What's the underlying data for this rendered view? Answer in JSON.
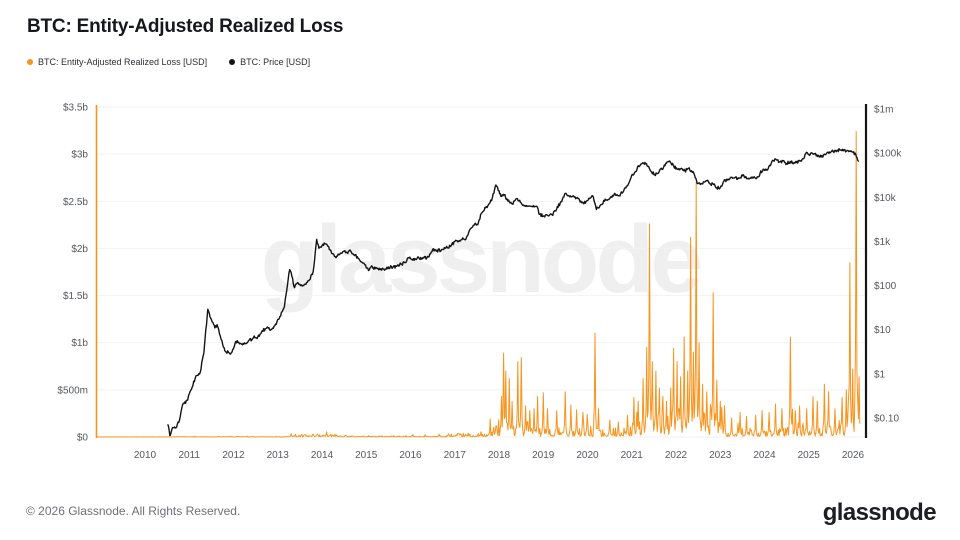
{
  "header": {
    "title": "BTC: Entity-Adjusted Realized Loss"
  },
  "legend": [
    {
      "label": "BTC: Entity-Adjusted Realized Loss [USD]",
      "color": "#F7941D"
    },
    {
      "label": "BTC: Price [USD]",
      "color": "#141414"
    }
  ],
  "watermark": "glassnode",
  "footer": {
    "copyright": "© 2026 Glassnode. All Rights Reserved.",
    "logo": "glassnode"
  },
  "chart_data": {
    "type": "line",
    "title": "BTC: Entity-Adjusted Realized Loss",
    "legend_position": "top-left",
    "grid": "horizontal gridlines at left-axis ticks",
    "x_axis": {
      "ticks": [
        "2010",
        "2011",
        "2012",
        "2013",
        "2014",
        "2015",
        "2016",
        "2017",
        "2018",
        "2019",
        "2020",
        "2021",
        "2022",
        "2023",
        "2024",
        "2025",
        "2026"
      ],
      "first_tick_year": 2010,
      "range_years": [
        2008.9,
        2026.3
      ]
    },
    "y_left": {
      "series": "BTC: Entity-Adjusted Realized Loss [USD]",
      "scale": "linear",
      "axis_color": "#F7941D",
      "ticks": [
        {
          "label": "$3.5b",
          "value_musd": 3500
        },
        {
          "label": "$3b",
          "value_musd": 3000
        },
        {
          "label": "$2.5b",
          "value_musd": 2500
        },
        {
          "label": "$2b",
          "value_musd": 2000
        },
        {
          "label": "$1.5b",
          "value_musd": 1500
        },
        {
          "label": "$1b",
          "value_musd": 1000
        },
        {
          "label": "$500m",
          "value_musd": 500
        },
        {
          "label": "$0",
          "value_musd": 0
        }
      ],
      "range_musd": [
        0,
        3500
      ]
    },
    "y_right": {
      "series": "BTC: Price [USD]",
      "scale": "log10",
      "axis_color": "#141414",
      "ticks": [
        {
          "label": "$1m",
          "value_usd": 1000000
        },
        {
          "label": "$100k",
          "value_usd": 100000
        },
        {
          "label": "$10k",
          "value_usd": 10000
        },
        {
          "label": "$1k",
          "value_usd": 1000
        },
        {
          "label": "$100",
          "value_usd": 100
        },
        {
          "label": "$10",
          "value_usd": 10
        },
        {
          "label": "$1",
          "value_usd": 1
        },
        {
          "label": "$0.10",
          "value_usd": 0.1
        }
      ]
    },
    "price_series": {
      "name": "BTC: Price [USD]",
      "color": "#141414",
      "points_year_usd": [
        [
          2010.52,
          0.07
        ],
        [
          2010.56,
          0.04
        ],
        [
          2010.62,
          0.06
        ],
        [
          2010.7,
          0.06
        ],
        [
          2010.78,
          0.09
        ],
        [
          2010.85,
          0.2
        ],
        [
          2010.95,
          0.25
        ],
        [
          2011.05,
          0.45
        ],
        [
          2011.15,
          0.9
        ],
        [
          2011.25,
          1.1
        ],
        [
          2011.33,
          3.0
        ],
        [
          2011.42,
          29
        ],
        [
          2011.5,
          17
        ],
        [
          2011.58,
          11
        ],
        [
          2011.63,
          13
        ],
        [
          2011.72,
          6.0
        ],
        [
          2011.82,
          3.2
        ],
        [
          2011.95,
          3.0
        ],
        [
          2012.05,
          5.4
        ],
        [
          2012.15,
          4.9
        ],
        [
          2012.3,
          5.0
        ],
        [
          2012.45,
          6.6
        ],
        [
          2012.55,
          6.9
        ],
        [
          2012.65,
          9.5
        ],
        [
          2012.75,
          11
        ],
        [
          2012.85,
          10.2
        ],
        [
          2012.95,
          13.4
        ],
        [
          2013.05,
          20
        ],
        [
          2013.15,
          33
        ],
        [
          2013.27,
          230
        ],
        [
          2013.32,
          160
        ],
        [
          2013.38,
          90
        ],
        [
          2013.45,
          117
        ],
        [
          2013.52,
          100
        ],
        [
          2013.62,
          108
        ],
        [
          2013.72,
          135
        ],
        [
          2013.8,
          205
        ],
        [
          2013.88,
          1120
        ],
        [
          2013.93,
          700
        ],
        [
          2014.0,
          805
        ],
        [
          2014.05,
          920
        ],
        [
          2014.12,
          820
        ],
        [
          2014.2,
          620
        ],
        [
          2014.3,
          450
        ],
        [
          2014.38,
          500
        ],
        [
          2014.47,
          590
        ],
        [
          2014.55,
          570
        ],
        [
          2014.65,
          600
        ],
        [
          2014.75,
          500
        ],
        [
          2014.85,
          380
        ],
        [
          2014.95,
          320
        ],
        [
          2015.05,
          220
        ],
        [
          2015.12,
          280
        ],
        [
          2015.2,
          240
        ],
        [
          2015.3,
          245
        ],
        [
          2015.4,
          235
        ],
        [
          2015.5,
          263
        ],
        [
          2015.6,
          255
        ],
        [
          2015.7,
          280
        ],
        [
          2015.8,
          310
        ],
        [
          2015.88,
          330
        ],
        [
          2015.95,
          430
        ],
        [
          2016.05,
          380
        ],
        [
          2016.15,
          415
        ],
        [
          2016.3,
          420
        ],
        [
          2016.42,
          450
        ],
        [
          2016.5,
          660
        ],
        [
          2016.58,
          600
        ],
        [
          2016.7,
          650
        ],
        [
          2016.8,
          710
        ],
        [
          2016.9,
          770
        ],
        [
          2017.0,
          990
        ],
        [
          2017.1,
          1050
        ],
        [
          2017.18,
          1200
        ],
        [
          2017.25,
          1100
        ],
        [
          2017.35,
          1900
        ],
        [
          2017.45,
          2500
        ],
        [
          2017.52,
          2400
        ],
        [
          2017.6,
          4300
        ],
        [
          2017.7,
          5800
        ],
        [
          2017.78,
          7200
        ],
        [
          2017.85,
          9800
        ],
        [
          2017.93,
          19000
        ],
        [
          2018.0,
          14000
        ],
        [
          2018.06,
          10500
        ],
        [
          2018.12,
          11300
        ],
        [
          2018.2,
          8200
        ],
        [
          2018.3,
          7100
        ],
        [
          2018.38,
          9200
        ],
        [
          2018.45,
          8300
        ],
        [
          2018.55,
          6700
        ],
        [
          2018.65,
          6400
        ],
        [
          2018.78,
          6500
        ],
        [
          2018.85,
          6300
        ],
        [
          2018.92,
          4100
        ],
        [
          2019.0,
          3750
        ],
        [
          2019.1,
          3900
        ],
        [
          2019.2,
          4000
        ],
        [
          2019.3,
          5300
        ],
        [
          2019.4,
          8000
        ],
        [
          2019.5,
          12300
        ],
        [
          2019.58,
          10800
        ],
        [
          2019.65,
          10300
        ],
        [
          2019.75,
          9600
        ],
        [
          2019.85,
          8200
        ],
        [
          2019.95,
          7300
        ],
        [
          2020.05,
          9400
        ],
        [
          2020.13,
          10200
        ],
        [
          2020.2,
          5300
        ],
        [
          2020.3,
          6800
        ],
        [
          2020.4,
          9100
        ],
        [
          2020.5,
          9300
        ],
        [
          2020.6,
          11600
        ],
        [
          2020.7,
          10800
        ],
        [
          2020.8,
          13000
        ],
        [
          2020.9,
          18000
        ],
        [
          2021.0,
          32000
        ],
        [
          2021.08,
          38000
        ],
        [
          2021.15,
          52000
        ],
        [
          2021.22,
          57000
        ],
        [
          2021.3,
          61500
        ],
        [
          2021.38,
          50000
        ],
        [
          2021.45,
          37000
        ],
        [
          2021.52,
          33000
        ],
        [
          2021.58,
          34500
        ],
        [
          2021.65,
          44000
        ],
        [
          2021.72,
          48000
        ],
        [
          2021.8,
          63000
        ],
        [
          2021.86,
          66000
        ],
        [
          2021.95,
          50000
        ],
        [
          2022.03,
          43500
        ],
        [
          2022.1,
          44000
        ],
        [
          2022.2,
          39500
        ],
        [
          2022.28,
          45500
        ],
        [
          2022.35,
          40000
        ],
        [
          2022.42,
          31500
        ],
        [
          2022.48,
          20500
        ],
        [
          2022.55,
          19500
        ],
        [
          2022.62,
          22500
        ],
        [
          2022.7,
          23500
        ],
        [
          2022.78,
          20000
        ],
        [
          2022.85,
          19500
        ],
        [
          2022.92,
          16300
        ],
        [
          2023.0,
          16800
        ],
        [
          2023.08,
          23000
        ],
        [
          2023.16,
          24500
        ],
        [
          2023.25,
          28500
        ],
        [
          2023.33,
          28000
        ],
        [
          2023.42,
          26800
        ],
        [
          2023.5,
          30500
        ],
        [
          2023.58,
          29500
        ],
        [
          2023.65,
          26000
        ],
        [
          2023.75,
          27500
        ],
        [
          2023.82,
          26500
        ],
        [
          2023.9,
          35000
        ],
        [
          2023.97,
          43500
        ],
        [
          2024.05,
          42800
        ],
        [
          2024.13,
          52000
        ],
        [
          2024.2,
          68000
        ],
        [
          2024.27,
          70500
        ],
        [
          2024.35,
          64000
        ],
        [
          2024.42,
          67000
        ],
        [
          2024.5,
          58000
        ],
        [
          2024.58,
          65000
        ],
        [
          2024.65,
          57500
        ],
        [
          2024.72,
          61000
        ],
        [
          2024.8,
          66000
        ],
        [
          2024.87,
          75000
        ],
        [
          2024.93,
          97000
        ],
        [
          2025.0,
          94000
        ],
        [
          2025.06,
          102000
        ],
        [
          2025.12,
          97500
        ],
        [
          2025.2,
          84000
        ],
        [
          2025.28,
          82000
        ],
        [
          2025.35,
          95000
        ],
        [
          2025.42,
          104000
        ],
        [
          2025.5,
          107000
        ],
        [
          2025.55,
          110000
        ],
        [
          2025.62,
          108000
        ],
        [
          2025.7,
          118500
        ],
        [
          2025.78,
          113000
        ],
        [
          2025.85,
          110500
        ],
        [
          2025.92,
          112000
        ],
        [
          2026.0,
          104000
        ],
        [
          2026.06,
          95000
        ],
        [
          2026.12,
          66000
        ]
      ]
    },
    "loss_series": {
      "name": "BTC: Entity-Adjusted Realized Loss [USD]",
      "color": "#F7941D",
      "baseline_musd_by_era": [
        [
          2008.9,
          2010.6,
          1
        ],
        [
          2010.6,
          2013.3,
          3
        ],
        [
          2013.3,
          2014.6,
          14
        ],
        [
          2014.6,
          2016.8,
          7
        ],
        [
          2016.8,
          2017.75,
          18
        ],
        [
          2017.75,
          2018.7,
          90
        ],
        [
          2018.7,
          2019.35,
          45
        ],
        [
          2019.35,
          2020.1,
          70
        ],
        [
          2020.1,
          2020.85,
          45
        ],
        [
          2020.85,
          2021.3,
          80
        ],
        [
          2021.3,
          2022.1,
          160
        ],
        [
          2022.1,
          2023.05,
          170
        ],
        [
          2023.05,
          2024.4,
          45
        ],
        [
          2024.4,
          2025.15,
          70
        ],
        [
          2025.15,
          2026.18,
          90
        ]
      ],
      "major_spikes_year_musd": [
        [
          2013.3,
          35
        ],
        [
          2013.9,
          30
        ],
        [
          2014.1,
          55
        ],
        [
          2014.3,
          30
        ],
        [
          2016.05,
          25
        ],
        [
          2016.65,
          30
        ],
        [
          2017.3,
          40
        ],
        [
          2017.6,
          55
        ],
        [
          2017.95,
          120
        ],
        [
          2018.06,
          430
        ],
        [
          2018.1,
          890
        ],
        [
          2018.16,
          700
        ],
        [
          2018.23,
          620
        ],
        [
          2018.3,
          380
        ],
        [
          2018.42,
          800
        ],
        [
          2018.5,
          840
        ],
        [
          2018.6,
          330
        ],
        [
          2018.7,
          280
        ],
        [
          2018.8,
          300
        ],
        [
          2018.88,
          430
        ],
        [
          2019.0,
          470
        ],
        [
          2019.1,
          300
        ],
        [
          2019.3,
          280
        ],
        [
          2019.5,
          480
        ],
        [
          2019.62,
          340
        ],
        [
          2019.75,
          290
        ],
        [
          2019.9,
          260
        ],
        [
          2020.0,
          240
        ],
        [
          2020.17,
          1100
        ],
        [
          2020.25,
          300
        ],
        [
          2020.5,
          180
        ],
        [
          2020.7,
          160
        ],
        [
          2020.9,
          230
        ],
        [
          2021.05,
          420
        ],
        [
          2021.15,
          380
        ],
        [
          2021.25,
          620
        ],
        [
          2021.33,
          950
        ],
        [
          2021.4,
          2260
        ],
        [
          2021.47,
          800
        ],
        [
          2021.55,
          700
        ],
        [
          2021.62,
          520
        ],
        [
          2021.7,
          430
        ],
        [
          2021.78,
          380
        ],
        [
          2021.88,
          520
        ],
        [
          2021.95,
          940
        ],
        [
          2022.03,
          800
        ],
        [
          2022.1,
          640
        ],
        [
          2022.18,
          1060
        ],
        [
          2022.27,
          700
        ],
        [
          2022.33,
          2120
        ],
        [
          2022.4,
          900
        ],
        [
          2022.46,
          2700
        ],
        [
          2022.52,
          1000
        ],
        [
          2022.6,
          560
        ],
        [
          2022.7,
          480
        ],
        [
          2022.84,
          1530
        ],
        [
          2022.92,
          600
        ],
        [
          2023.0,
          380
        ],
        [
          2023.1,
          330
        ],
        [
          2023.25,
          200
        ],
        [
          2023.45,
          260
        ],
        [
          2023.6,
          220
        ],
        [
          2023.8,
          230
        ],
        [
          2023.95,
          280
        ],
        [
          2024.1,
          260
        ],
        [
          2024.25,
          350
        ],
        [
          2024.4,
          300
        ],
        [
          2024.58,
          1060
        ],
        [
          2024.7,
          280
        ],
        [
          2024.8,
          330
        ],
        [
          2024.95,
          300
        ],
        [
          2025.1,
          430
        ],
        [
          2025.2,
          380
        ],
        [
          2025.35,
          560
        ],
        [
          2025.45,
          480
        ],
        [
          2025.6,
          300
        ],
        [
          2025.75,
          420
        ],
        [
          2025.85,
          500
        ],
        [
          2025.93,
          1850
        ],
        [
          2026.0,
          720
        ],
        [
          2026.08,
          3240
        ],
        [
          2026.13,
          640
        ]
      ]
    },
    "colors": {
      "grid": "#f2f2f2",
      "tick_label": "#55585c",
      "background": "#ffffff"
    }
  }
}
